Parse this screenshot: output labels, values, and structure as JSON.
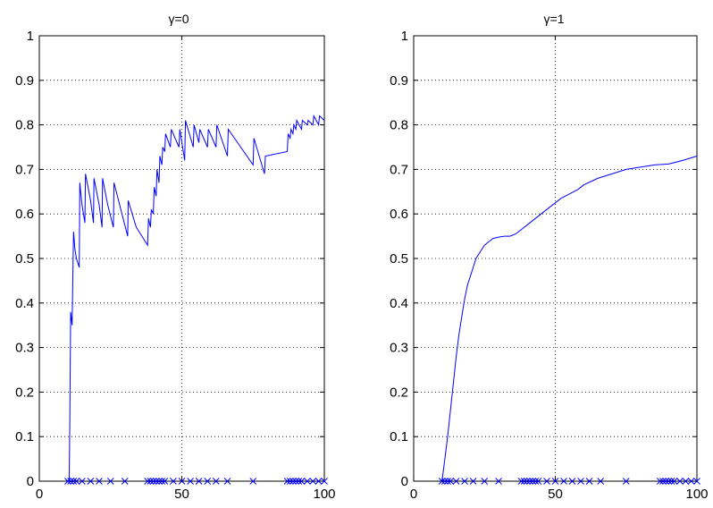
{
  "chart_data": [
    {
      "type": "line",
      "title": "γ=0",
      "xlim": [
        0,
        100
      ],
      "ylim": [
        0,
        1
      ],
      "xticks": [
        "0",
        "50",
        "100"
      ],
      "yticks": [
        "0",
        "0.1",
        "0.2",
        "0.3",
        "0.4",
        "0.5",
        "0.6",
        "0.7",
        "0.8",
        "0.9",
        "1"
      ],
      "grid": true,
      "line_color": "#0000ff",
      "series": [
        {
          "x": [
            10,
            10.5,
            10.7,
            11,
            11.5,
            12,
            12.5,
            13,
            14,
            14.2,
            15,
            16,
            16.2,
            18,
            19,
            19.2,
            21,
            22,
            22.2,
            24,
            26,
            26.2,
            29,
            31,
            31.2,
            34,
            38,
            38.3,
            39,
            39.3,
            40,
            40.3,
            41,
            41.3,
            42,
            42.3,
            43,
            43.3,
            44,
            44.3,
            46,
            46.3,
            49,
            49.3,
            51,
            51.3,
            54,
            54.3,
            56,
            56.3,
            59,
            59.3,
            62,
            62.3,
            66,
            66.3,
            75,
            75.3,
            79,
            79.3,
            87,
            87.3,
            88,
            88.3,
            89,
            89.3,
            90,
            90.3,
            92,
            92.3,
            94,
            94.3,
            96,
            96.3,
            98,
            98.3,
            100
          ],
          "y": [
            0,
            0,
            0.13,
            0.38,
            0.35,
            0.56,
            0.52,
            0.5,
            0.48,
            0.67,
            0.62,
            0.58,
            0.69,
            0.63,
            0.58,
            0.68,
            0.62,
            0.57,
            0.68,
            0.62,
            0.57,
            0.67,
            0.6,
            0.55,
            0.63,
            0.57,
            0.53,
            0.59,
            0.57,
            0.61,
            0.6,
            0.66,
            0.64,
            0.7,
            0.67,
            0.73,
            0.71,
            0.75,
            0.74,
            0.78,
            0.75,
            0.79,
            0.75,
            0.79,
            0.72,
            0.81,
            0.75,
            0.8,
            0.76,
            0.79,
            0.75,
            0.79,
            0.75,
            0.8,
            0.73,
            0.79,
            0.71,
            0.77,
            0.69,
            0.73,
            0.74,
            0.78,
            0.77,
            0.79,
            0.78,
            0.8,
            0.79,
            0.81,
            0.79,
            0.81,
            0.8,
            0.81,
            0.8,
            0.82,
            0.8,
            0.82,
            0.81
          ]
        }
      ],
      "markers": {
        "symbol": "x",
        "y": 0,
        "x": [
          10,
          11,
          12,
          13,
          15,
          18,
          21,
          25,
          30,
          38,
          39,
          40,
          41,
          42,
          43,
          44,
          47,
          50,
          53,
          56,
          59,
          62,
          66,
          75,
          87,
          88,
          89,
          90,
          91,
          92,
          94,
          96,
          98,
          100
        ]
      }
    },
    {
      "type": "line",
      "title": "γ=1",
      "xlim": [
        0,
        100
      ],
      "ylim": [
        0,
        1
      ],
      "xticks": [
        "0",
        "50",
        "100"
      ],
      "yticks": [
        "0",
        "0.1",
        "0.2",
        "0.3",
        "0.4",
        "0.5",
        "0.6",
        "0.7",
        "0.8",
        "0.9",
        "1"
      ],
      "grid": true,
      "line_color": "#0000ff",
      "series": [
        {
          "x": [
            10,
            11,
            12,
            13,
            14,
            15,
            16,
            17,
            18,
            19,
            20,
            21,
            22,
            23,
            24,
            25,
            26,
            27,
            28,
            30,
            32,
            34,
            36,
            38,
            40,
            42,
            44,
            46,
            48,
            50,
            52,
            55,
            58,
            60,
            65,
            70,
            75,
            80,
            85,
            90,
            95,
            100
          ],
          "y": [
            0,
            0.05,
            0.1,
            0.16,
            0.22,
            0.28,
            0.33,
            0.37,
            0.41,
            0.44,
            0.46,
            0.48,
            0.5,
            0.51,
            0.52,
            0.53,
            0.535,
            0.54,
            0.545,
            0.548,
            0.55,
            0.55,
            0.555,
            0.565,
            0.575,
            0.585,
            0.595,
            0.605,
            0.615,
            0.625,
            0.635,
            0.645,
            0.655,
            0.665,
            0.68,
            0.69,
            0.7,
            0.705,
            0.71,
            0.712,
            0.72,
            0.73
          ]
        }
      ],
      "markers": {
        "symbol": "x",
        "y": 0,
        "x": [
          10,
          11,
          12,
          13,
          15,
          18,
          21,
          25,
          30,
          38,
          39,
          40,
          41,
          42,
          43,
          44,
          47,
          50,
          53,
          56,
          59,
          62,
          66,
          75,
          87,
          88,
          89,
          90,
          91,
          92,
          94,
          96,
          98,
          100
        ]
      }
    }
  ]
}
